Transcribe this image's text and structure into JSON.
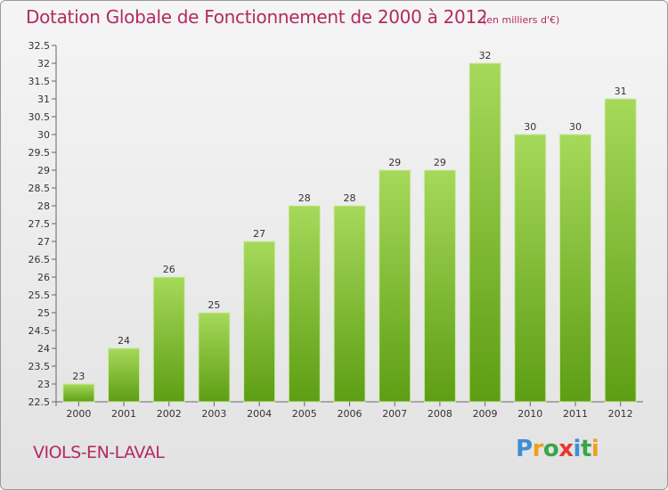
{
  "chart_data": {
    "type": "bar",
    "title": "Dotation Globale de Fonctionnement de 2000 à 2012",
    "subtitle": "(en milliers d'€)",
    "categories": [
      "2000",
      "2001",
      "2002",
      "2003",
      "2004",
      "2005",
      "2006",
      "2007",
      "2008",
      "2009",
      "2010",
      "2011",
      "2012"
    ],
    "values": [
      23,
      24,
      26,
      25,
      27,
      28,
      28,
      29,
      29,
      32,
      30,
      30,
      31
    ],
    "ylim": [
      22.5,
      32.5
    ],
    "yticks": [
      "22.5",
      "23",
      "23.5",
      "24",
      "24.5",
      "25",
      "25.5",
      "26",
      "26.5",
      "27",
      "27.5",
      "28",
      "28.5",
      "29",
      "29.5",
      "30",
      "30.5",
      "31",
      "31.5",
      "32",
      "32.5"
    ],
    "xlabel": "",
    "ylabel": "",
    "grid": false,
    "bar_color_top": "#a6d95a",
    "bar_color_bottom": "#5d9e14"
  },
  "commune": "VIOLS-EN-LAVAL",
  "logo": {
    "letters": [
      "P",
      "r",
      "o",
      "x",
      "i",
      "t",
      "i"
    ],
    "colors": [
      "#3e8fd6",
      "#f0a01c",
      "#3aa54a",
      "#e63a2a",
      "#3e8fd6",
      "#3aa54a",
      "#f0a01c"
    ]
  }
}
